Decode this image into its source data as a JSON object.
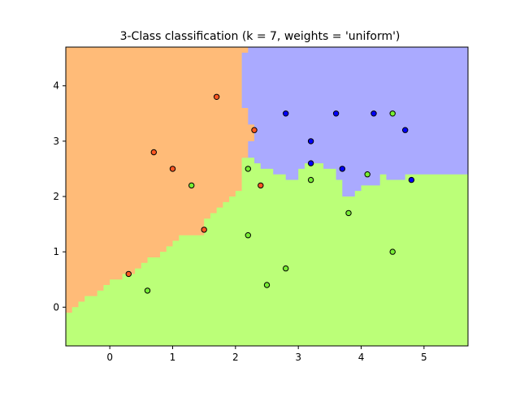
{
  "chart_data": {
    "type": "scatter",
    "title": "3-Class classification (k = 7, weights = 'uniform')",
    "xlabel": "",
    "ylabel": "",
    "xlim": [
      -0.7,
      5.7
    ],
    "ylim": [
      -0.7,
      4.7
    ],
    "x_ticks": [
      0,
      1,
      2,
      3,
      4,
      5
    ],
    "y_ticks": [
      0,
      1,
      2,
      3,
      4
    ],
    "grid": false,
    "legend": "none",
    "region_colors": {
      "class_0": "#FFBB78",
      "class_1": "#AAAAFF",
      "class_2": "#BBFF78"
    },
    "point_edge_color": "#000000",
    "series": [
      {
        "class": 0,
        "color": "#FF5722",
        "points": [
          [
            1.7,
            3.8
          ],
          [
            2.3,
            3.2
          ],
          [
            0.7,
            2.8
          ],
          [
            1.0,
            2.5
          ],
          [
            2.4,
            2.2
          ],
          [
            1.5,
            1.4
          ],
          [
            0.3,
            0.6
          ]
        ]
      },
      {
        "class": 1,
        "color": "#0000FF",
        "points": [
          [
            2.8,
            3.5
          ],
          [
            3.6,
            3.5
          ],
          [
            4.2,
            3.5
          ],
          [
            4.7,
            3.2
          ],
          [
            3.2,
            3.0
          ],
          [
            3.2,
            2.6
          ],
          [
            3.7,
            2.5
          ],
          [
            4.8,
            2.3
          ]
        ]
      },
      {
        "class": 2,
        "color": "#77EE33",
        "points": [
          [
            4.5,
            3.5
          ],
          [
            2.2,
            2.5
          ],
          [
            4.1,
            2.4
          ],
          [
            3.2,
            2.3
          ],
          [
            1.3,
            2.2
          ],
          [
            3.8,
            1.7
          ],
          [
            2.2,
            1.3
          ],
          [
            4.5,
            1.0
          ],
          [
            2.8,
            0.7
          ],
          [
            2.5,
            0.4
          ],
          [
            0.6,
            0.3
          ]
        ]
      }
    ],
    "decision_regions": {
      "orange_right_boundary": [
        [
          -0.7,
          -0.1
        ],
        [
          -0.6,
          -0.1
        ],
        [
          -0.6,
          0.0
        ],
        [
          -0.5,
          0.0
        ],
        [
          -0.5,
          0.1
        ],
        [
          -0.4,
          0.1
        ],
        [
          -0.4,
          0.2
        ],
        [
          -0.2,
          0.2
        ],
        [
          -0.2,
          0.3
        ],
        [
          -0.1,
          0.3
        ],
        [
          -0.1,
          0.4
        ],
        [
          0.0,
          0.4
        ],
        [
          0.0,
          0.5
        ],
        [
          0.2,
          0.5
        ],
        [
          0.2,
          0.6
        ],
        [
          0.4,
          0.6
        ],
        [
          0.4,
          0.7
        ],
        [
          0.5,
          0.7
        ],
        [
          0.5,
          0.8
        ],
        [
          0.6,
          0.8
        ],
        [
          0.6,
          0.9
        ],
        [
          0.8,
          0.9
        ],
        [
          0.8,
          1.0
        ],
        [
          0.9,
          1.0
        ],
        [
          0.9,
          1.1
        ],
        [
          1.0,
          1.1
        ],
        [
          1.0,
          1.2
        ],
        [
          1.1,
          1.2
        ],
        [
          1.1,
          1.3
        ],
        [
          1.5,
          1.3
        ],
        [
          1.5,
          1.6
        ],
        [
          1.6,
          1.6
        ],
        [
          1.6,
          1.7
        ],
        [
          1.7,
          1.7
        ],
        [
          1.7,
          1.8
        ],
        [
          1.8,
          1.8
        ],
        [
          1.8,
          1.9
        ],
        [
          1.9,
          1.9
        ],
        [
          1.9,
          2.0
        ],
        [
          2.0,
          2.0
        ],
        [
          2.0,
          2.1
        ],
        [
          2.1,
          2.1
        ],
        [
          2.1,
          2.7
        ],
        [
          2.2,
          2.7
        ],
        [
          2.2,
          3.0
        ],
        [
          2.3,
          3.0
        ],
        [
          2.3,
          3.3
        ],
        [
          2.2,
          3.3
        ],
        [
          2.2,
          3.6
        ],
        [
          2.1,
          3.6
        ],
        [
          2.1,
          4.6
        ],
        [
          2.2,
          4.6
        ],
        [
          2.2,
          4.7
        ]
      ],
      "blue_bottom_boundary": [
        [
          2.1,
          2.7
        ],
        [
          2.3,
          2.7
        ],
        [
          2.3,
          2.6
        ],
        [
          2.4,
          2.6
        ],
        [
          2.4,
          2.5
        ],
        [
          2.6,
          2.5
        ],
        [
          2.6,
          2.4
        ],
        [
          2.8,
          2.4
        ],
        [
          2.8,
          2.3
        ],
        [
          3.0,
          2.3
        ],
        [
          3.0,
          2.5
        ],
        [
          3.1,
          2.5
        ],
        [
          3.1,
          2.6
        ],
        [
          3.4,
          2.6
        ],
        [
          3.4,
          2.5
        ],
        [
          3.6,
          2.5
        ],
        [
          3.6,
          2.3
        ],
        [
          3.7,
          2.3
        ],
        [
          3.7,
          2.0
        ],
        [
          3.9,
          2.0
        ],
        [
          3.9,
          2.1
        ],
        [
          4.0,
          2.1
        ],
        [
          4.0,
          2.2
        ],
        [
          4.3,
          2.2
        ],
        [
          4.3,
          2.4
        ],
        [
          4.4,
          2.4
        ],
        [
          4.4,
          2.3
        ],
        [
          4.7,
          2.3
        ],
        [
          4.7,
          2.4
        ],
        [
          5.7,
          2.4
        ]
      ]
    }
  }
}
